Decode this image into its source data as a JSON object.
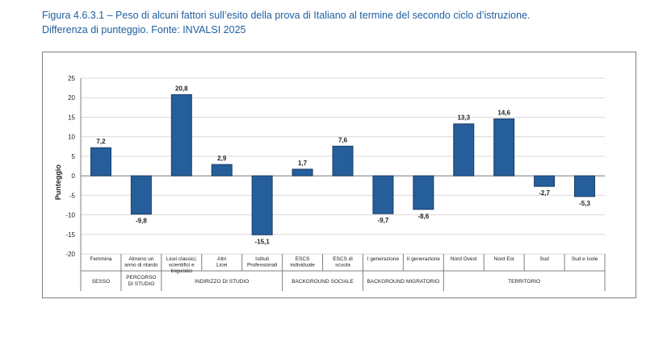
{
  "caption": {
    "line1": "Figura 4.6.3.1 – Peso di alcuni fattori sull’esito della prova di Italiano al termine del secondo ciclo d’istruzione.",
    "line2": "Differenza di punteggio. Fonte: INVALSI 2025"
  },
  "chart_data": {
    "type": "bar",
    "ylabel": "Punteggio",
    "ylim": [
      -20,
      25
    ],
    "yticks": [
      -20,
      -15,
      -10,
      -5,
      0,
      5,
      10,
      15,
      20,
      25
    ],
    "grid": true,
    "bar_color": "#255e9a",
    "categories": [
      [
        "Femmina"
      ],
      [
        "Almeno un",
        "anno di ritardo"
      ],
      [
        "Licei classici,",
        "scientifici e",
        "linguistici"
      ],
      [
        "Altri",
        "Licei"
      ],
      [
        "Istituti",
        "Professionali"
      ],
      [
        "ESCS",
        "individuale"
      ],
      [
        "ESCS  di",
        "scuola"
      ],
      [
        "I generazione"
      ],
      [
        "II generazione"
      ],
      [
        "Nord Ovest"
      ],
      [
        "Nord Est"
      ],
      [
        "Sud"
      ],
      [
        "Sud e Isole"
      ]
    ],
    "values": [
      7.2,
      -9.8,
      20.8,
      2.9,
      -15.1,
      1.7,
      7.6,
      -9.7,
      -8.6,
      13.3,
      14.6,
      -2.7,
      -5.3
    ],
    "value_labels": [
      "7,2",
      "-9,8",
      "20,8",
      "2,9",
      "-15,1",
      "1,7",
      "7,6",
      "-9,7",
      "-8,6",
      "13,3",
      "14,6",
      "-2,7",
      "-5,3"
    ],
    "groups": [
      {
        "label": [
          "SESSO"
        ],
        "span": 1
      },
      {
        "label": [
          "PERCORSO",
          "DI STUDIO"
        ],
        "span": 1
      },
      {
        "label": [
          "INDIRIZZO DI STUDIO"
        ],
        "span": 3
      },
      {
        "label": [
          "BACKGROUND SOCIALE"
        ],
        "span": 2
      },
      {
        "label": [
          "BACKGROUND MIGRATORIO"
        ],
        "span": 2
      },
      {
        "label": [
          "TERRITORIO"
        ],
        "span": 4
      }
    ]
  }
}
